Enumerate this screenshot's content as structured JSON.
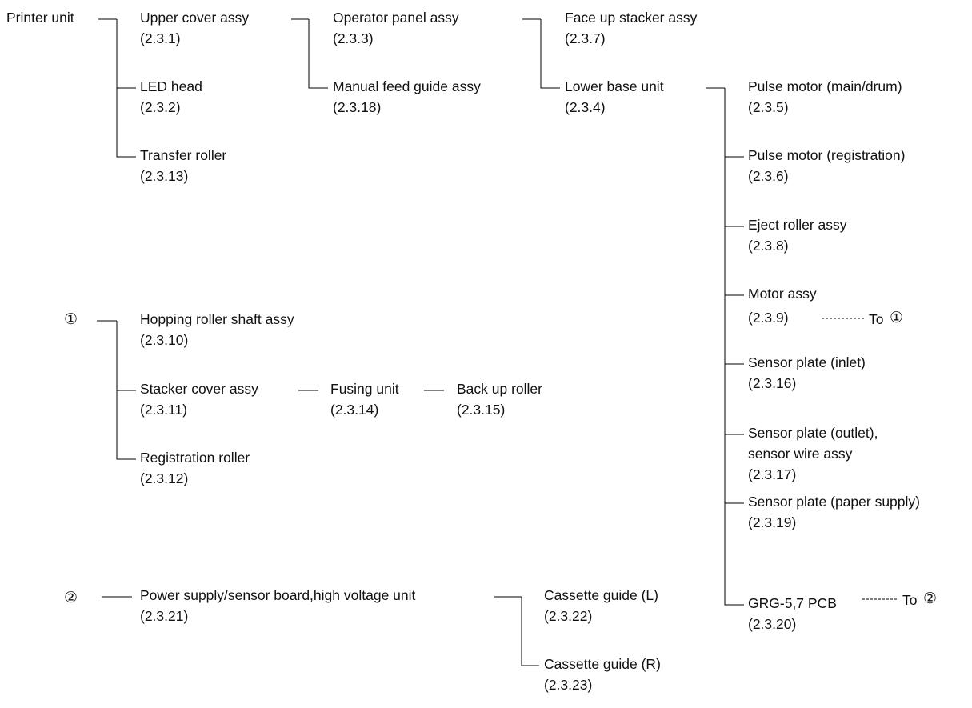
{
  "nodes": {
    "printer_unit": "Printer unit",
    "upper_cover": {
      "name": "Upper cover assy",
      "ref": "(2.3.1)"
    },
    "led_head": {
      "name": "LED head",
      "ref": "(2.3.2)"
    },
    "transfer_roller": {
      "name": "Transfer roller",
      "ref": "(2.3.13)"
    },
    "operator_panel": {
      "name": "Operator panel assy",
      "ref": "(2.3.3)"
    },
    "manual_feed": {
      "name": "Manual feed guide assy",
      "ref": "(2.3.18)"
    },
    "face_up": {
      "name": "Face up stacker assy",
      "ref": "(2.3.7)"
    },
    "lower_base": {
      "name": "Lower base unit",
      "ref": "(2.3.4)"
    },
    "pulse_main": {
      "name": "Pulse motor (main/drum)",
      "ref": "(2.3.5)"
    },
    "pulse_reg": {
      "name": "Pulse motor (registration)",
      "ref": "(2.3.6)"
    },
    "eject": {
      "name": "Eject roller assy",
      "ref": "(2.3.8)"
    },
    "motor": {
      "name": "Motor assy",
      "ref": "(2.3.9)"
    },
    "sensor_inlet": {
      "name": "Sensor plate (inlet)",
      "ref": "(2.3.16)"
    },
    "sensor_outlet": {
      "name": "Sensor plate (outlet),",
      "name2": "sensor wire assy",
      "ref": "(2.3.17)"
    },
    "sensor_supply": {
      "name": "Sensor plate (paper supply)",
      "ref": "(2.3.19)"
    },
    "grg": {
      "name": "GRG-5,7 PCB",
      "ref": "(2.3.20)"
    },
    "marker1": "①",
    "hopping": {
      "name": "Hopping roller shaft assy",
      "ref": "(2.3.10)"
    },
    "stacker_cover": {
      "name": "Stacker cover assy",
      "ref": "(2.3.11)"
    },
    "registration": {
      "name": "Registration roller",
      "ref": "(2.3.12)"
    },
    "fusing": {
      "name": "Fusing unit",
      "ref": "(2.3.14)"
    },
    "backup": {
      "name": "Back up roller",
      "ref": "(2.3.15)"
    },
    "marker2": "②",
    "power": {
      "name": "Power supply/sensor board,high voltage unit",
      "ref": "(2.3.21)"
    },
    "cassette_l": {
      "name": "Cassette guide (L)",
      "ref": "(2.3.22)"
    },
    "cassette_r": {
      "name": "Cassette guide (R)",
      "ref": "(2.3.23)"
    }
  },
  "refs": {
    "to1_word": "To",
    "to1_sym": "①",
    "to2_word": "To",
    "to2_sym": "②"
  },
  "colors": {
    "line": "#000000",
    "text": "#111111"
  }
}
